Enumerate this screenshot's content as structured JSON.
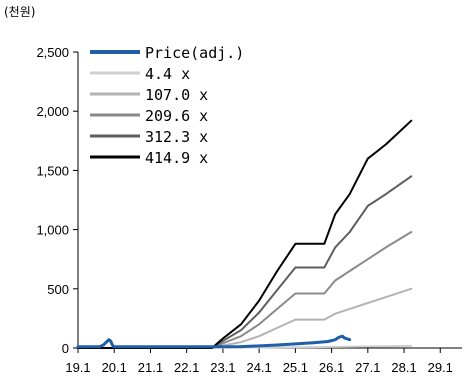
{
  "chart_data": {
    "type": "line",
    "title": "",
    "unit_label": "(천원)",
    "xlabel": "",
    "ylabel": "",
    "ylim": [
      0,
      2500
    ],
    "xlim": [
      2019.0,
      2029.6
    ],
    "y_ticks": [
      0,
      500,
      1000,
      1500,
      2000,
      2500
    ],
    "y_tick_labels": [
      "0",
      "500",
      "1,000",
      "1,500",
      "2,000",
      "2,500"
    ],
    "x_ticks": [
      2019.0,
      2020.0,
      2021.0,
      2022.0,
      2023.0,
      2024.0,
      2025.0,
      2026.0,
      2027.0,
      2028.0,
      2029.0
    ],
    "x_tick_labels": [
      "19.1",
      "20.1",
      "21.1",
      "22.1",
      "23.1",
      "24.1",
      "25.1",
      "26.1",
      "27.1",
      "28.1",
      "29.1"
    ],
    "legend_position": "top-left",
    "grid": false,
    "series": [
      {
        "name": "Price(adj.)",
        "color": "#1f5fa8",
        "width": 3,
        "points": [
          [
            2019.0,
            10
          ],
          [
            2019.6,
            12
          ],
          [
            2019.7,
            25
          ],
          [
            2019.8,
            55
          ],
          [
            2019.85,
            70
          ],
          [
            2019.9,
            60
          ],
          [
            2019.95,
            25
          ],
          [
            2020.0,
            10
          ],
          [
            2022.5,
            10
          ],
          [
            2023.5,
            12
          ],
          [
            2024.0,
            18
          ],
          [
            2024.5,
            25
          ],
          [
            2025.0,
            35
          ],
          [
            2025.5,
            45
          ],
          [
            2025.9,
            55
          ],
          [
            2026.1,
            70
          ],
          [
            2026.2,
            90
          ],
          [
            2026.3,
            100
          ],
          [
            2026.35,
            85
          ],
          [
            2026.5,
            70
          ]
        ]
      },
      {
        "name": "4.4 x",
        "color": "#cfcfcf",
        "width": 2,
        "points": [
          [
            2019.0,
            2
          ],
          [
            2022.7,
            2
          ],
          [
            2024.0,
            4
          ],
          [
            2025.5,
            8
          ],
          [
            2027.0,
            13
          ],
          [
            2028.2,
            18
          ]
        ]
      },
      {
        "name": "107.0 x",
        "color": "#b3b3b3",
        "width": 2,
        "points": [
          [
            2019.0,
            0
          ],
          [
            2022.7,
            0
          ],
          [
            2023.0,
            20
          ],
          [
            2023.5,
            50
          ],
          [
            2024.0,
            100
          ],
          [
            2024.5,
            170
          ],
          [
            2025.0,
            240
          ],
          [
            2025.8,
            240
          ],
          [
            2026.1,
            290
          ],
          [
            2026.5,
            330
          ],
          [
            2027.0,
            380
          ],
          [
            2027.5,
            430
          ],
          [
            2028.2,
            500
          ]
        ]
      },
      {
        "name": "209.6 x",
        "color": "#8a8a8a",
        "width": 2,
        "points": [
          [
            2019.0,
            0
          ],
          [
            2022.7,
            0
          ],
          [
            2023.0,
            40
          ],
          [
            2023.5,
            100
          ],
          [
            2024.0,
            200
          ],
          [
            2024.5,
            330
          ],
          [
            2025.0,
            460
          ],
          [
            2025.8,
            460
          ],
          [
            2026.1,
            570
          ],
          [
            2026.5,
            650
          ],
          [
            2027.0,
            750
          ],
          [
            2027.5,
            850
          ],
          [
            2028.2,
            980
          ]
        ]
      },
      {
        "name": "312.3 x",
        "color": "#5e5e5e",
        "width": 2,
        "points": [
          [
            2019.0,
            0
          ],
          [
            2022.7,
            0
          ],
          [
            2023.0,
            60
          ],
          [
            2023.5,
            150
          ],
          [
            2024.0,
            300
          ],
          [
            2024.5,
            490
          ],
          [
            2025.0,
            680
          ],
          [
            2025.8,
            680
          ],
          [
            2026.1,
            850
          ],
          [
            2026.5,
            980
          ],
          [
            2027.0,
            1200
          ],
          [
            2027.5,
            1300
          ],
          [
            2028.2,
            1450
          ]
        ]
      },
      {
        "name": "414.9 x",
        "color": "#000000",
        "width": 2,
        "points": [
          [
            2019.0,
            0
          ],
          [
            2022.7,
            0
          ],
          [
            2023.0,
            80
          ],
          [
            2023.5,
            200
          ],
          [
            2024.0,
            400
          ],
          [
            2024.5,
            650
          ],
          [
            2025.0,
            880
          ],
          [
            2025.8,
            880
          ],
          [
            2026.1,
            1130
          ],
          [
            2026.5,
            1300
          ],
          [
            2027.0,
            1600
          ],
          [
            2027.5,
            1720
          ],
          [
            2028.2,
            1920
          ]
        ]
      }
    ]
  }
}
